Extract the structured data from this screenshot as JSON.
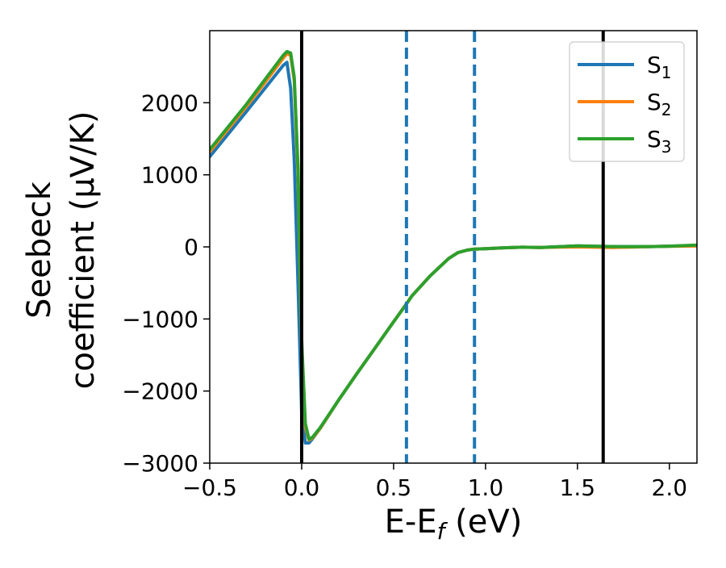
{
  "chart_data": {
    "type": "line",
    "title": "",
    "xlabel": "E-E",
    "xlabel_subscript": "f",
    "xlabel_unit": " (eV)",
    "ylabel_line1": "Seebeck",
    "ylabel_line2": "coefficient  (μV/K)",
    "xlim": [
      -0.5,
      2.15
    ],
    "ylim": [
      -3000,
      3000
    ],
    "xticks": [
      -0.5,
      0.0,
      0.5,
      1.0,
      1.5,
      2.0
    ],
    "xtick_labels": [
      "−0.5",
      "0.0",
      "0.5",
      "1.0",
      "1.5",
      "2.0"
    ],
    "yticks": [
      -3000,
      -2000,
      -1000,
      0,
      1000,
      2000
    ],
    "ytick_labels": [
      "−3000",
      "−2000",
      "−1000",
      "0",
      "1000",
      "2000"
    ],
    "grid": false,
    "legend_position": "top-right",
    "vertical_lines": [
      {
        "x": 0.0,
        "style": "solid",
        "color": "#000000"
      },
      {
        "x": 0.57,
        "style": "dashed",
        "color": "#1f77b4"
      },
      {
        "x": 0.94,
        "style": "dashed",
        "color": "#1f77b4"
      },
      {
        "x": 1.64,
        "style": "solid",
        "color": "#000000"
      }
    ],
    "series": [
      {
        "name": "S",
        "subscript": "1",
        "color": "#1f77b4",
        "x": [
          -0.5,
          -0.3,
          -0.2,
          -0.1,
          -0.08,
          -0.06,
          -0.04,
          -0.02,
          0.0,
          0.02,
          0.04,
          0.06,
          0.1,
          0.2,
          0.3,
          0.4,
          0.5,
          0.57,
          0.6,
          0.7,
          0.8,
          0.85,
          0.9,
          0.94,
          1.0,
          1.1,
          1.2,
          1.3,
          1.4,
          1.5,
          1.6,
          1.7,
          1.8,
          1.9,
          2.0,
          2.15
        ],
        "values": [
          1250,
          1880,
          2200,
          2520,
          2560,
          2200,
          1200,
          -500,
          -2300,
          -2720,
          -2720,
          -2660,
          -2520,
          -2130,
          -1760,
          -1400,
          -1040,
          -790,
          -680,
          -400,
          -160,
          -80,
          -45,
          -30,
          -25,
          -12,
          -5,
          -8,
          2,
          15,
          8,
          5,
          2,
          5,
          10,
          20
        ]
      },
      {
        "name": "S",
        "subscript": "2",
        "color": "#ff7f0e",
        "x": [
          -0.5,
          -0.3,
          -0.2,
          -0.1,
          -0.08,
          -0.06,
          -0.04,
          -0.02,
          0.0,
          0.02,
          0.04,
          0.06,
          0.1,
          0.2,
          0.3,
          0.4,
          0.5,
          0.57,
          0.6,
          0.7,
          0.8,
          0.85,
          0.9,
          0.94,
          1.0,
          1.1,
          1.2,
          1.3,
          1.4,
          1.5,
          1.6,
          1.7,
          1.8,
          1.9,
          2.0,
          2.15
        ],
        "values": [
          1320,
          1950,
          2280,
          2620,
          2680,
          2660,
          2300,
          1000,
          -1400,
          -2500,
          -2680,
          -2650,
          -2520,
          -2130,
          -1760,
          -1400,
          -1040,
          -790,
          -680,
          -400,
          -160,
          -80,
          -45,
          -30,
          -25,
          -12,
          -5,
          -8,
          -2,
          0,
          -5,
          -8,
          -2,
          5,
          8,
          12
        ]
      },
      {
        "name": "S",
        "subscript": "3",
        "color": "#2ca02c",
        "x": [
          -0.5,
          -0.3,
          -0.2,
          -0.1,
          -0.08,
          -0.06,
          -0.04,
          -0.02,
          0.0,
          0.02,
          0.04,
          0.06,
          0.1,
          0.2,
          0.3,
          0.4,
          0.5,
          0.57,
          0.6,
          0.7,
          0.8,
          0.85,
          0.9,
          0.94,
          1.0,
          1.1,
          1.2,
          1.3,
          1.4,
          1.5,
          1.6,
          1.7,
          1.8,
          1.9,
          2.0,
          2.15
        ],
        "values": [
          1350,
          1980,
          2320,
          2660,
          2710,
          2690,
          2350,
          1100,
          -1300,
          -2450,
          -2670,
          -2640,
          -2510,
          -2130,
          -1760,
          -1400,
          -1040,
          -790,
          -680,
          -400,
          -160,
          -80,
          -45,
          -30,
          -25,
          -12,
          -5,
          -8,
          2,
          15,
          8,
          5,
          2,
          5,
          10,
          25
        ]
      }
    ]
  }
}
